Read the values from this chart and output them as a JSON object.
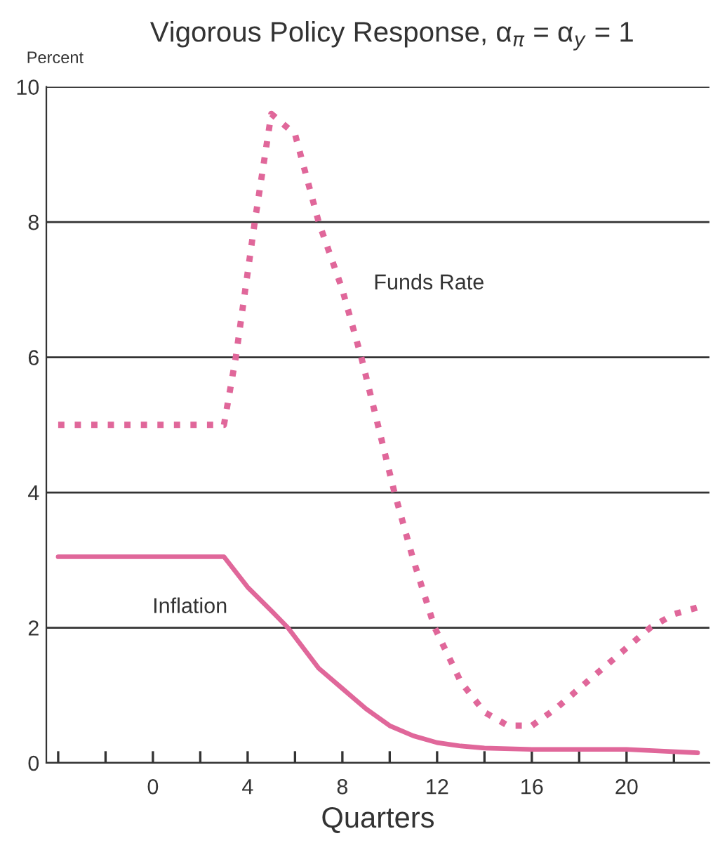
{
  "chart_data": {
    "type": "line",
    "title": "Vigorous Policy Response, α$_{π}$ = α$_{y}$ = 1",
    "xlabel": "Quarters",
    "ylabel": "Percent",
    "xlim": [
      -4.5,
      23.5
    ],
    "ylim": [
      0,
      10
    ],
    "xticks": [
      {
        "value": -4,
        "label": null
      },
      {
        "value": -2,
        "label": null
      },
      0,
      {
        "value": 2,
        "label": null
      },
      4,
      {
        "value": 6,
        "label": null
      },
      8,
      {
        "value": 10,
        "label": null
      },
      12,
      {
        "value": 14,
        "label": null
      },
      16,
      {
        "value": 18,
        "label": null
      },
      20,
      {
        "value": 22,
        "label": null
      }
    ],
    "yticks": [
      0,
      2,
      4,
      6,
      8,
      10
    ],
    "grid": "y",
    "legend": false,
    "series": [
      {
        "name": "Funds Rate",
        "color": "#e0679a",
        "line_style": "dotted",
        "x": [
          -4,
          3,
          3.5,
          4.3,
          5,
          6,
          7,
          8,
          8.8,
          10.2,
          11,
          11.9,
          13,
          14,
          15,
          16,
          17,
          18,
          19,
          20,
          21,
          22,
          23
        ],
        "values": [
          5,
          5,
          6,
          8,
          9.6,
          9.3,
          8,
          7,
          6,
          4,
          3,
          2,
          1.2,
          0.75,
          0.55,
          0.55,
          0.8,
          1.1,
          1.4,
          1.7,
          2.0,
          2.2,
          2.3
        ]
      },
      {
        "name": "Inflation",
        "color": "#e0679a",
        "line_style": "solid",
        "x": [
          -4,
          0,
          3,
          4,
          5,
          5.7,
          7,
          8,
          9,
          10,
          11,
          12,
          13,
          14,
          16,
          20,
          23
        ],
        "values": [
          3.05,
          3.05,
          3.05,
          2.6,
          2.25,
          2.0,
          1.4,
          1.1,
          0.8,
          0.55,
          0.4,
          0.3,
          0.25,
          0.22,
          0.2,
          0.2,
          0.15
        ]
      }
    ]
  }
}
